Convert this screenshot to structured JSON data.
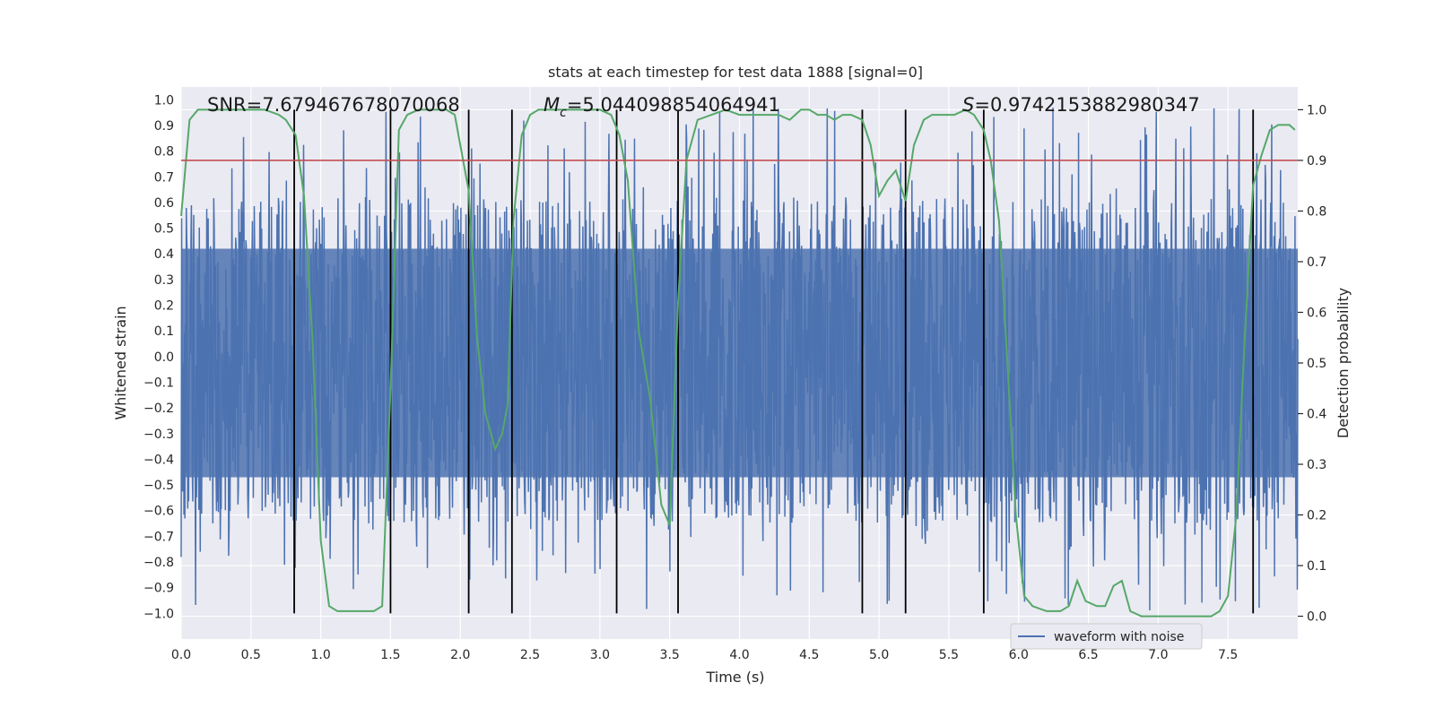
{
  "chart_data": {
    "type": "line",
    "title": "stats at each timestep for test data 1888 [signal=0]",
    "xlabel": "Time (s)",
    "ylabel": "Whitened strain",
    "y2label": "Detection probability",
    "xlim": [
      0.0,
      8.0
    ],
    "ylim": [
      -1.1,
      1.05
    ],
    "y2lim": [
      -0.045,
      1.045
    ],
    "x_ticks": [
      0.0,
      0.5,
      1.0,
      1.5,
      2.0,
      2.5,
      3.0,
      3.5,
      4.0,
      4.5,
      5.0,
      5.5,
      6.0,
      6.5,
      7.0,
      7.5
    ],
    "x_tick_labels": [
      "0.0",
      "0.5",
      "1.0",
      "1.5",
      "2.0",
      "2.5",
      "3.0",
      "3.5",
      "4.0",
      "4.5",
      "5.0",
      "5.5",
      "6.0",
      "6.5",
      "7.0",
      "7.5"
    ],
    "y_ticks": [
      1.0,
      0.9,
      0.8,
      0.7,
      0.6,
      0.5,
      0.4,
      0.3,
      0.2,
      0.1,
      0.0,
      -0.1,
      -0.2,
      -0.3,
      -0.4,
      -0.5,
      -0.6,
      -0.7,
      -0.8,
      -0.9,
      -1.0
    ],
    "y_tick_labels": [
      "1.0",
      "0.9",
      "0.8",
      "0.7",
      "0.6",
      "0.5",
      "0.4",
      "0.3",
      "0.2",
      "0.1",
      "0.0",
      "−0.1",
      "−0.2",
      "−0.3",
      "−0.4",
      "−0.5",
      "−0.6",
      "−0.7",
      "−0.8",
      "−0.9",
      "−1.0"
    ],
    "y2_ticks": [
      1.0,
      0.9,
      0.8,
      0.7,
      0.6,
      0.5,
      0.4,
      0.3,
      0.2,
      0.1,
      0.0
    ],
    "y2_tick_labels": [
      "1.0",
      "0.9",
      "0.8",
      "0.7",
      "0.6",
      "0.5",
      "0.4",
      "0.3",
      "0.2",
      "0.1",
      "0.0"
    ],
    "grid": true,
    "legend": {
      "entries": [
        "waveform with noise"
      ],
      "position": "lower-right"
    },
    "annotations": {
      "snr": "SNR=7.679467678070068",
      "mc_symbol": "M",
      "mc_sub": "c",
      "mc_value": "=5.044098854064941",
      "s_symbol": "S",
      "s_value": "=0.9742153882980347"
    },
    "threshold_y2": 0.9,
    "vertical_lines_x": [
      0.81,
      1.5,
      2.06,
      2.37,
      3.12,
      3.56,
      4.88,
      5.19,
      5.75,
      7.68
    ],
    "series": [
      {
        "name": "waveform with noise",
        "color": "#4c72b0",
        "envelope": {
          "x": [
            0.0,
            8.0
          ],
          "y": [
            -0.47,
            0.42
          ],
          "spikes_max": 0.97,
          "spikes_min": -0.99
        }
      },
      {
        "color": "#55a868",
        "axis": "y2",
        "x": [
          0.0,
          0.06,
          0.12,
          0.2,
          0.3,
          0.4,
          0.5,
          0.6,
          0.7,
          0.75,
          0.82,
          0.88,
          0.94,
          1.0,
          1.06,
          1.12,
          1.2,
          1.3,
          1.38,
          1.44,
          1.5,
          1.56,
          1.62,
          1.7,
          1.8,
          1.9,
          1.96,
          2.0,
          2.06,
          2.12,
          2.18,
          2.25,
          2.3,
          2.34,
          2.38,
          2.44,
          2.5,
          2.56,
          2.64,
          2.72,
          2.8,
          2.9,
          3.0,
          3.08,
          3.14,
          3.2,
          3.28,
          3.36,
          3.44,
          3.5,
          3.56,
          3.62,
          3.7,
          3.8,
          3.9,
          4.0,
          4.05,
          4.12,
          4.2,
          4.28,
          4.36,
          4.44,
          4.5,
          4.56,
          4.62,
          4.68,
          4.74,
          4.8,
          4.88,
          4.94,
          5.0,
          5.06,
          5.12,
          5.19,
          5.25,
          5.32,
          5.38,
          5.46,
          5.54,
          5.62,
          5.68,
          5.75,
          5.8,
          5.86,
          5.92,
          5.98,
          6.04,
          6.1,
          6.2,
          6.3,
          6.36,
          6.42,
          6.48,
          6.56,
          6.62,
          6.68,
          6.74,
          6.8,
          6.88,
          6.96,
          7.06,
          7.16,
          7.28,
          7.38,
          7.44,
          7.5,
          7.56,
          7.62,
          7.68,
          7.74,
          7.8,
          7.86,
          7.94,
          7.98
        ],
        "y": [
          0.79,
          0.98,
          1.0,
          1.0,
          1.0,
          1.0,
          1.0,
          1.0,
          0.99,
          0.98,
          0.95,
          0.83,
          0.55,
          0.15,
          0.02,
          0.01,
          0.01,
          0.01,
          0.01,
          0.02,
          0.45,
          0.96,
          0.99,
          1.0,
          1.0,
          1.0,
          0.99,
          0.93,
          0.84,
          0.55,
          0.4,
          0.33,
          0.36,
          0.42,
          0.78,
          0.95,
          0.99,
          1.0,
          1.0,
          1.0,
          1.0,
          1.0,
          1.0,
          0.99,
          0.95,
          0.86,
          0.56,
          0.43,
          0.22,
          0.18,
          0.62,
          0.9,
          0.98,
          0.99,
          1.0,
          0.99,
          0.99,
          0.99,
          0.99,
          0.99,
          0.98,
          1.0,
          1.0,
          0.99,
          0.99,
          0.98,
          0.99,
          0.99,
          0.98,
          0.93,
          0.83,
          0.86,
          0.88,
          0.82,
          0.93,
          0.98,
          0.99,
          0.99,
          0.99,
          1.0,
          0.99,
          0.96,
          0.9,
          0.78,
          0.5,
          0.2,
          0.04,
          0.02,
          0.01,
          0.01,
          0.02,
          0.07,
          0.03,
          0.02,
          0.02,
          0.06,
          0.07,
          0.01,
          0.0,
          0.0,
          0.0,
          0.0,
          0.0,
          0.0,
          0.01,
          0.04,
          0.2,
          0.55,
          0.85,
          0.91,
          0.96,
          0.97,
          0.97,
          0.96
        ]
      },
      {
        "color": "#c44e52",
        "axis": "y2",
        "x": [
          0.0,
          8.0
        ],
        "y": [
          0.9,
          0.9
        ]
      }
    ]
  }
}
